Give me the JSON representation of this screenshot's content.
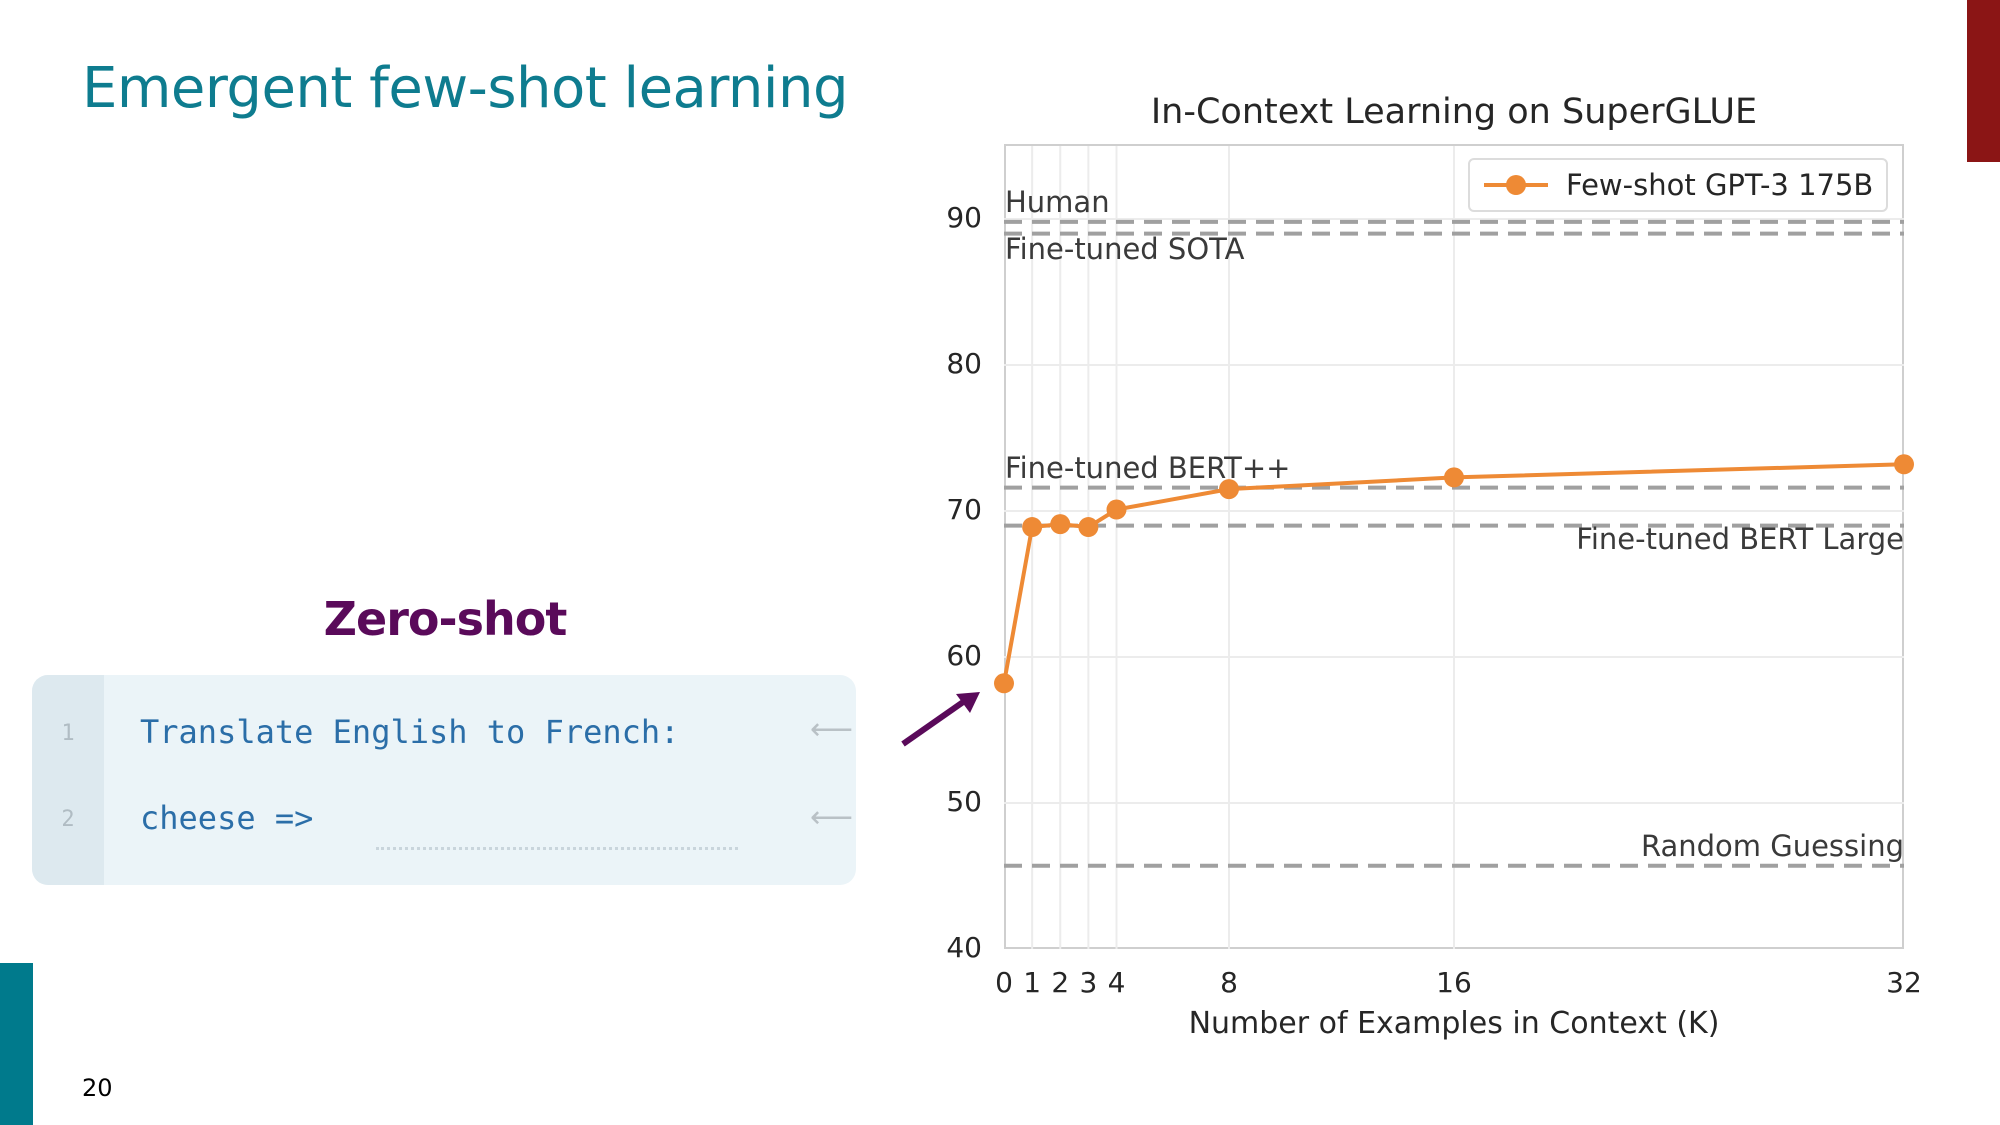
{
  "slide": {
    "title": "Emergent few-shot learning",
    "page_number": "20",
    "accent_colors": {
      "title": "#0e7c8f",
      "top_right_bar": "#8b1515",
      "bottom_left_bar": "#007a8c",
      "zero_shot": "#5a0a5a"
    }
  },
  "prompt_example": {
    "heading": "Zero-shot",
    "lines": [
      {
        "number": "1",
        "text": "Translate English to French:"
      },
      {
        "number": "2",
        "text": "cheese =>"
      }
    ],
    "arrow_icon": "left-arrow"
  },
  "chart_data": {
    "type": "line",
    "title": "In-Context Learning on SuperGLUE",
    "xlabel": "Number of Examples in Context (K)",
    "ylabel": "",
    "x": [
      0,
      1,
      2,
      3,
      4,
      8,
      16,
      32
    ],
    "xticks": [
      "0",
      "1",
      "2",
      "3",
      "4",
      "8",
      "16",
      "32"
    ],
    "yticks": [
      "40",
      "50",
      "60",
      "70",
      "80",
      "90"
    ],
    "ylim": [
      40,
      95
    ],
    "xlim": [
      0,
      32
    ],
    "grid": true,
    "legend_position": "upper right",
    "series": [
      {
        "name": "Few-shot GPT-3 175B",
        "color": "#ee8a35",
        "values": [
          58.2,
          68.9,
          69.1,
          68.9,
          70.1,
          71.5,
          72.3,
          73.2
        ]
      }
    ],
    "reference_lines": [
      {
        "label": "Human",
        "value": 89.8,
        "label_position": "left-above"
      },
      {
        "label": "Fine-tuned SOTA",
        "value": 89.0,
        "label_position": "left-below"
      },
      {
        "label": "Fine-tuned BERT++",
        "value": 71.6,
        "label_position": "left-above"
      },
      {
        "label": "Fine-tuned BERT Large",
        "value": 69.0,
        "label_position": "right-below"
      },
      {
        "label": "Random Guessing",
        "value": 45.7,
        "label_position": "right-above"
      }
    ]
  }
}
